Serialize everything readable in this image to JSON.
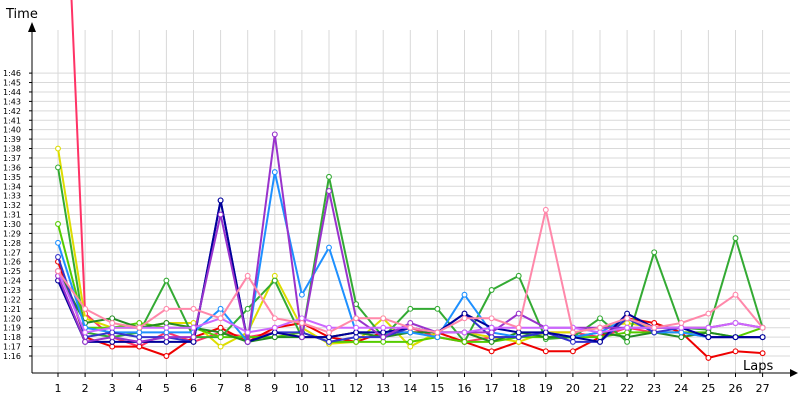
{
  "chart_data": {
    "type": "line",
    "xlabel": "Laps",
    "ylabel": "Time",
    "x": [
      1,
      2,
      3,
      4,
      5,
      6,
      7,
      8,
      9,
      10,
      11,
      12,
      13,
      14,
      15,
      16,
      17,
      18,
      19,
      20,
      21,
      22,
      23,
      24,
      25,
      26,
      27
    ],
    "y_ticks": [
      "1:16",
      "1:17",
      "1:18",
      "1:19",
      "1:20",
      "1:21",
      "1:22",
      "1:23",
      "1:24",
      "1:25",
      "1:26",
      "1:27",
      "1:28",
      "1:29",
      "1:30",
      "1:31",
      "1:32",
      "1:33",
      "1:34",
      "1:35",
      "1:36",
      "1:37",
      "1:38",
      "1:39",
      "1:40",
      "1:41",
      "1:42",
      "1:43",
      "1:44",
      "1:45",
      "1:46"
    ],
    "ylim_seconds": [
      75,
      148
    ],
    "grid": true,
    "legend": "none",
    "series": [
      {
        "color": "#ff3366",
        "values_seconds": [
          147,
          80.5,
          78,
          77,
          78.5,
          77.5,
          78.5,
          78,
          78.5,
          78,
          78,
          78.5,
          78,
          79,
          78,
          77.5,
          78,
          78,
          78.5,
          78.5,
          78,
          79,
          78.5,
          78.5,
          78,
          78,
          78
        ]
      },
      {
        "color": "#ee0000",
        "values_seconds": [
          86,
          78,
          77,
          77,
          76,
          78,
          79,
          77.5,
          79,
          79.5,
          78,
          77.5,
          78.5,
          78.5,
          78.5,
          77.5,
          76.5,
          77.5,
          76.5,
          76.5,
          78,
          80,
          79.5,
          78.5,
          75.8,
          76.5,
          76.3
        ]
      },
      {
        "color": "#dddd00",
        "values_seconds": [
          98,
          80,
          79,
          79,
          79.5,
          79.5,
          77,
          78.5,
          84.5,
          79,
          77.3,
          77.5,
          80,
          77,
          78.5,
          78.5,
          78,
          77.5,
          78.5,
          78.5,
          79,
          79.5,
          79,
          79,
          79,
          79.5,
          79
        ]
      },
      {
        "color": "#33aa33",
        "values_seconds": [
          96,
          78.5,
          78,
          78.5,
          84,
          78,
          78,
          81,
          84,
          78,
          95,
          81.5,
          78,
          81,
          81,
          77.5,
          83,
          84.5,
          77.8,
          78,
          80,
          77.5,
          87,
          79,
          78.8,
          88.5,
          79
        ]
      },
      {
        "color": "#55cc00",
        "values_seconds": [
          90,
          79,
          79,
          79.5,
          79,
          79,
          78,
          78,
          78,
          78.5,
          77.5,
          77.5,
          77.5,
          77.5,
          78,
          77.5,
          77.5,
          78,
          78,
          78,
          78,
          78.5,
          78.5,
          78.5,
          78.5,
          78,
          79
        ]
      },
      {
        "color": "#228B22",
        "values_seconds": [
          85,
          79.5,
          80,
          79,
          79.5,
          79,
          78.5,
          77.5,
          78,
          78,
          78,
          78.5,
          78,
          78.5,
          78.5,
          78.5,
          77.5,
          78.5,
          78,
          78,
          78.5,
          78,
          78.5,
          78,
          78.5,
          78,
          78
        ]
      },
      {
        "color": "#1e90ff",
        "values_seconds": [
          88,
          79,
          78.5,
          78.5,
          78.5,
          78.5,
          81,
          77.5,
          95.5,
          82.5,
          87.5,
          78.5,
          78.5,
          78.5,
          78,
          82.5,
          78.5,
          78,
          78.5,
          78,
          78.5,
          80,
          78.5,
          78.5,
          78,
          78,
          78
        ]
      },
      {
        "color": "#3333cc",
        "values_seconds": [
          86.5,
          78,
          78.5,
          78,
          78,
          77.5,
          92.5,
          77.5,
          78.5,
          78.5,
          77.5,
          78,
          78,
          79,
          78.5,
          80.5,
          78,
          78,
          78.5,
          77.5,
          77.5,
          80,
          78.5,
          79,
          78,
          78,
          78
        ]
      },
      {
        "color": "#000099",
        "values_seconds": [
          84,
          77.5,
          77.5,
          77.5,
          77.5,
          77.5,
          92.5,
          77.5,
          78.5,
          78,
          78,
          78.5,
          78.5,
          79,
          78.5,
          80.5,
          79,
          78.5,
          78.5,
          78,
          77.5,
          80.5,
          79,
          79,
          78,
          78,
          78
        ]
      },
      {
        "color": "#9933cc",
        "values_seconds": [
          84.5,
          77.5,
          78,
          77.5,
          78,
          78,
          91,
          77.5,
          99.5,
          78,
          93.5,
          80,
          78,
          79.5,
          78.5,
          78.5,
          78.5,
          80.5,
          79,
          79,
          79,
          79,
          79,
          79,
          79,
          79.5,
          79
        ]
      },
      {
        "color": "#cc66ff",
        "values_seconds": [
          85,
          78.5,
          79,
          79,
          79,
          79,
          80,
          78.5,
          79,
          80,
          79,
          79,
          79,
          79,
          78.5,
          78.5,
          79,
          79,
          79,
          79,
          78.5,
          79,
          79,
          79,
          79,
          79.5,
          79
        ]
      },
      {
        "color": "#ff88aa",
        "values_seconds": [
          85,
          81,
          79.5,
          79,
          81,
          81,
          80,
          84.5,
          80,
          79.5,
          78.5,
          80,
          80,
          79,
          78.5,
          80,
          80,
          79,
          91.5,
          78.5,
          79,
          80,
          79,
          79.5,
          80.5,
          82.5,
          79
        ]
      }
    ]
  }
}
